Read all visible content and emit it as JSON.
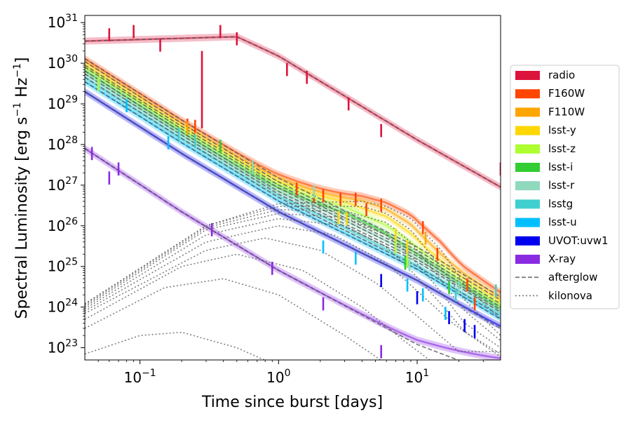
{
  "chart_data": {
    "type": "line",
    "title": "",
    "xlabel": "Time since burst [days]",
    "ylabel_main": "Spectral Luminosity [erg s",
    "ylabel_sup1": "−1",
    "ylabel_mid": " Hz",
    "ylabel_sup2": "−1",
    "ylabel_end": "]",
    "xscale": "log",
    "yscale": "log",
    "xlim": [
      0.04,
      40
    ],
    "ylim": [
      5e+22,
      1.5e+31
    ],
    "x_ticks": [
      {
        "value": 0.1,
        "base": "10",
        "exp": "−1"
      },
      {
        "value": 1,
        "base": "10",
        "exp": "0"
      },
      {
        "value": 10,
        "base": "10",
        "exp": "1"
      }
    ],
    "y_ticks": [
      {
        "value": 1e+23,
        "base": "10",
        "exp": "23"
      },
      {
        "value": 1e+24,
        "base": "10",
        "exp": "24"
      },
      {
        "value": 1e+25,
        "base": "10",
        "exp": "25"
      },
      {
        "value": 1e+26,
        "base": "10",
        "exp": "26"
      },
      {
        "value": 1e+27,
        "base": "10",
        "exp": "27"
      },
      {
        "value": 1e+28,
        "base": "10",
        "exp": "28"
      },
      {
        "value": 1e+29,
        "base": "10",
        "exp": "29"
      },
      {
        "value": 1e+30,
        "base": "10",
        "exp": "30"
      },
      {
        "value": 1e+31,
        "base": "10",
        "exp": "31"
      }
    ],
    "legend_position": "right",
    "legend": [
      {
        "label": "radio",
        "color": "#dc143c",
        "kind": "patch"
      },
      {
        "label": "F160W",
        "color": "#ff4500",
        "kind": "patch"
      },
      {
        "label": "F110W",
        "color": "#ffa500",
        "kind": "patch"
      },
      {
        "label": "lsst-y",
        "color": "#ffd700",
        "kind": "patch"
      },
      {
        "label": "lsst-z",
        "color": "#adff2f",
        "kind": "patch"
      },
      {
        "label": "lsst-i",
        "color": "#32cd32",
        "kind": "patch"
      },
      {
        "label": "lsst-r",
        "color": "#8fd9bd",
        "kind": "patch"
      },
      {
        "label": "lsstg",
        "color": "#40cfcf",
        "kind": "patch"
      },
      {
        "label": "lsst-u",
        "color": "#00bfff",
        "kind": "patch"
      },
      {
        "label": "UVOT:uvw1",
        "color": "#0000ee",
        "kind": "patch"
      },
      {
        "label": "X-ray",
        "color": "#8a2be2",
        "kind": "patch"
      },
      {
        "label": "afterglow",
        "color": "#808080",
        "kind": "dashed"
      },
      {
        "label": "kilonova",
        "color": "#808080",
        "kind": "dotted"
      }
    ],
    "series": [
      {
        "name": "radio",
        "color": "#dc143c",
        "kn": null,
        "knDecay": 0,
        "ag": [
          [
            0.04,
            3.5e+30
          ],
          [
            0.5,
            4.5e+30
          ],
          [
            1,
            1.5e+30
          ],
          [
            10,
            1.3e+28
          ],
          [
            40,
            9e+26
          ]
        ],
        "obs": [
          [
            0.06,
            5e+30
          ],
          [
            0.09,
            6e+30
          ],
          [
            0.14,
            2.8e+30
          ],
          [
            0.28,
            2e+30,
            2.5e+28
          ],
          [
            0.38,
            6e+30
          ],
          [
            0.5,
            4e+30
          ],
          [
            1.15,
            7e+29
          ],
          [
            1.6,
            4.5e+29
          ],
          [
            3.2,
            1e+29
          ],
          [
            5.5,
            2.2e+28
          ],
          [
            40,
            2.5e+27
          ]
        ]
      },
      {
        "name": "F160W",
        "color": "#ff4500",
        "kn": [
          [
            0.04,
            1.2e+24
          ],
          [
            0.3,
            1e+26
          ],
          [
            1,
            3.5e+26
          ],
          [
            4,
            4e+26
          ],
          [
            6,
            3e+26
          ],
          [
            9,
            1.5e+26
          ],
          [
            15,
            2.5e+25
          ],
          [
            22,
            3.5e+24
          ],
          [
            40,
            5e+23
          ]
        ],
        "knDecay": 0,
        "ag": [
          [
            0.04,
            1.3e+30
          ],
          [
            0.2,
            4e+28
          ],
          [
            1,
            1.5e+27
          ],
          [
            10,
            3e+25
          ],
          [
            40,
            1.8e+24
          ]
        ],
        "obs": [
          [
            0.22,
            3e+28
          ],
          [
            0.25,
            2.8e+28
          ],
          [
            1.35,
            8e+26
          ],
          [
            1.8,
            5.5e+26
          ],
          [
            2.1,
            5.5e+26
          ],
          [
            2.8,
            4.5e+26
          ],
          [
            3.6,
            4.5e+26
          ],
          [
            4.3,
            2.5e+26
          ],
          [
            5.5,
            3.2e+26
          ],
          [
            11,
            9e+25
          ],
          [
            14,
            2e+25
          ],
          [
            23,
            3.5e+24
          ],
          [
            26,
            1.2e+24
          ]
        ]
      },
      {
        "name": "F110W",
        "color": "#ffa500",
        "kn": [
          [
            0.04,
            1.2e+24
          ],
          [
            0.3,
            1e+26
          ],
          [
            1,
            3e+26
          ],
          [
            4,
            3e+26
          ],
          [
            6,
            2e+26
          ],
          [
            9,
            8e+25
          ],
          [
            14,
            1.2e+25
          ],
          [
            22,
            1.5e+24
          ],
          [
            40,
            2e+23
          ]
        ],
        "knDecay": 0,
        "ag": [
          [
            0.04,
            1.1e+30
          ],
          [
            0.2,
            3.3e+28
          ],
          [
            1,
            1.2e+27
          ],
          [
            10,
            2.5e+25
          ],
          [
            40,
            1.5e+24
          ]
        ],
        "obs": [
          [
            0.22,
            2.5e+28
          ],
          [
            11.5,
            5e+25
          ]
        ]
      },
      {
        "name": "lsst-y",
        "color": "#ffd700",
        "kn": [
          [
            0.04,
            1.1e+24
          ],
          [
            0.3,
            9e+25
          ],
          [
            1,
            2.5e+26
          ],
          [
            3,
            2.3e+26
          ],
          [
            6,
            1.2e+26
          ],
          [
            9,
            4e+25
          ],
          [
            14,
            6e+24
          ],
          [
            22,
            8e+23
          ],
          [
            40,
            1.5e+23
          ]
        ],
        "knDecay": 0,
        "ag": [
          [
            0.04,
            9e+29
          ],
          [
            0.2,
            2.8e+28
          ],
          [
            1,
            1e+27
          ],
          [
            10,
            2.1e+25
          ],
          [
            40,
            1.2e+24
          ]
        ],
        "obs": [
          [
            2.7,
            1.6e+26
          ],
          [
            3.1,
            1.5e+26
          ],
          [
            7,
            6e+25
          ],
          [
            8.5,
            3e+25
          ]
        ]
      },
      {
        "name": "lsst-z",
        "color": "#adff2f",
        "kn": [
          [
            0.04,
            1e+24
          ],
          [
            0.3,
            8e+25
          ],
          [
            1,
            2e+26
          ],
          [
            3,
            1.6e+26
          ],
          [
            6,
            6e+25
          ],
          [
            9,
            1.8e+25
          ],
          [
            14,
            3e+24
          ],
          [
            22,
            4e+23
          ],
          [
            40,
            1e+23
          ]
        ],
        "knDecay": 0,
        "ag": [
          [
            0.04,
            8e+29
          ],
          [
            0.2,
            2.4e+28
          ],
          [
            1,
            8.5e+26
          ],
          [
            10,
            1.8e+25
          ],
          [
            40,
            1e+24
          ]
        ],
        "obs": [
          [
            0.05,
            3e+29
          ],
          [
            7,
            3e+25
          ],
          [
            8.5,
            1.4e+25
          ]
        ]
      },
      {
        "name": "lsst-i",
        "color": "#32cd32",
        "kn": [
          [
            0.04,
            9e+23
          ],
          [
            0.3,
            6e+25
          ],
          [
            1,
            1.5e+26
          ],
          [
            3,
            1e+26
          ],
          [
            6,
            3e+25
          ],
          [
            9,
            8e+24
          ],
          [
            14,
            1.5e+24
          ],
          [
            22,
            2.5e+23
          ],
          [
            40,
            7e+22
          ]
        ],
        "knDecay": 0,
        "ag": [
          [
            0.04,
            6.5e+29
          ],
          [
            0.2,
            2e+28
          ],
          [
            1,
            7e+26
          ],
          [
            10,
            1.5e+25
          ],
          [
            40,
            8.5e+23
          ]
        ],
        "obs": [
          [
            0.38,
            9e+27
          ],
          [
            8.2,
            1.2e+25
          ],
          [
            17,
            3e+24
          ]
        ]
      },
      {
        "name": "lsst-r",
        "color": "#8fd9bd",
        "kn": [
          [
            0.04,
            8e+23
          ],
          [
            0.3,
            4e+25
          ],
          [
            1,
            1e+26
          ],
          [
            2.5,
            6e+25
          ],
          [
            6,
            1.2e+25
          ],
          [
            10,
            2.5e+24
          ],
          [
            18,
            4e+23
          ],
          [
            40,
            6e+22
          ]
        ],
        "knDecay": 0,
        "ag": [
          [
            0.04,
            5.5e+29
          ],
          [
            0.2,
            1.7e+28
          ],
          [
            1,
            6e+26
          ],
          [
            10,
            1.3e+25
          ],
          [
            40,
            7.5e+23
          ]
        ],
        "obs": [
          [
            0.65,
            2.8e+27
          ],
          [
            1.8,
            7e+26
          ],
          [
            8.8,
            1.1e+25
          ],
          [
            20,
            3e+24
          ]
        ]
      },
      {
        "name": "lsstg",
        "color": "#40cfcf",
        "kn": [
          [
            0.04,
            7e+23
          ],
          [
            0.3,
            2.5e+25
          ],
          [
            0.8,
            5e+25
          ],
          [
            2,
            2.5e+25
          ],
          [
            5,
            4e+24
          ],
          [
            10,
            6e+23
          ],
          [
            20,
            8e+22
          ]
        ],
        "knDecay": 0,
        "ag": [
          [
            0.04,
            4.5e+29
          ],
          [
            0.2,
            1.4e+28
          ],
          [
            1,
            5e+26
          ],
          [
            10,
            1e+25
          ],
          [
            40,
            6e+23
          ]
        ],
        "obs": [
          [
            0.25,
            1.2e+28
          ],
          [
            0.19,
            1.8e+28
          ],
          [
            19,
            2e+24
          ],
          [
            37,
            2.5e+24
          ]
        ]
      },
      {
        "name": "lsst-u",
        "color": "#00bfff",
        "kn": [
          [
            0.04,
            5e+23
          ],
          [
            0.2,
            1e+25
          ],
          [
            0.5,
            2e+25
          ],
          [
            1.5,
            8e+24
          ],
          [
            4,
            1e+24
          ],
          [
            8,
            1.5e+23
          ],
          [
            15,
            3e+22
          ]
        ],
        "knDecay": 0,
        "ag": [
          [
            0.04,
            3.5e+29
          ],
          [
            0.2,
            1.1e+28
          ],
          [
            1,
            4e+26
          ],
          [
            10,
            8.5e+24
          ],
          [
            40,
            5e+23
          ]
        ],
        "obs": [
          [
            0.08,
            9e+28
          ],
          [
            0.16,
            1.1e+28
          ],
          [
            2.1,
            3e+25
          ],
          [
            3.6,
            1.6e+25
          ],
          [
            8.5,
            3.5e+24
          ],
          [
            11,
            2e+24
          ],
          [
            16,
            7e+23
          ]
        ]
      },
      {
        "name": "UVOT:uvw1",
        "color": "#0000ee",
        "kn": [
          [
            0.04,
            3e+23
          ],
          [
            0.15,
            3e+24
          ],
          [
            0.4,
            5e+24
          ],
          [
            1,
            2e+24
          ],
          [
            3,
            2e+23
          ],
          [
            6,
            4e+22
          ]
        ],
        "knDecay": 0,
        "ag": [
          [
            0.04,
            2e+29
          ],
          [
            0.2,
            6e+27
          ],
          [
            1,
            2.2e+26
          ],
          [
            10,
            4.5e+24
          ],
          [
            40,
            3e+23
          ]
        ],
        "obs": [
          [
            5.5,
            4.5e+24
          ],
          [
            10,
            1.7e+24
          ],
          [
            17,
            5.5e+23
          ],
          [
            22,
            3.5e+23
          ],
          [
            26,
            2.5e+23
          ]
        ]
      },
      {
        "name": "X-ray",
        "color": "#8a2be2",
        "kn": [
          [
            0.04,
            7e+22
          ],
          [
            0.1,
            2e+23
          ],
          [
            0.2,
            2.4e+23
          ],
          [
            0.5,
            1e+23
          ],
          [
            1,
            3.5e+22
          ]
        ],
        "knDecay": 0,
        "ag": [
          [
            0.04,
            8e+27
          ],
          [
            0.2,
            2.2e+26
          ],
          [
            1,
            8e+24
          ],
          [
            10,
            1.2e+23
          ],
          [
            40,
            2e+22
          ]
        ],
        "obs": [
          [
            0.045,
            6e+27
          ],
          [
            0.06,
            1.5e+27
          ],
          [
            0.07,
            2.5e+27
          ],
          [
            0.33,
            8e+25
          ],
          [
            0.9,
            9e+24
          ],
          [
            2.1,
            1.2e+24
          ],
          [
            5.5,
            8e+22
          ]
        ]
      }
    ]
  }
}
